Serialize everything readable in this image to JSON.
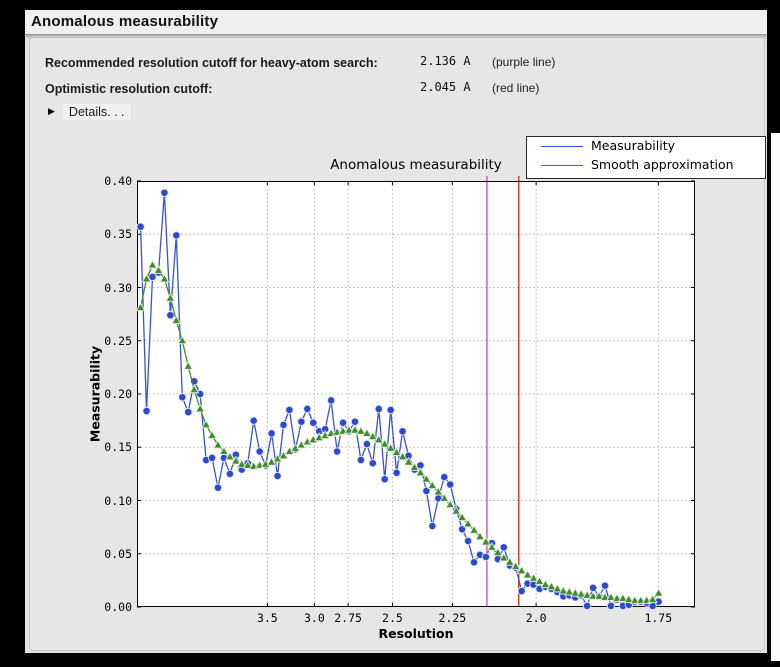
{
  "window": {
    "title": "Anomalous measurability"
  },
  "summary": {
    "rows": [
      {
        "label": "Recommended resolution cutoff for heavy-atom search:",
        "value": "2.136 A",
        "note": "(purple line)"
      },
      {
        "label": "Optimistic resolution cutoff:",
        "value": "2.045 A",
        "note": "(red line)"
      }
    ],
    "details_label": "Details. . .",
    "details_icon": "▶"
  },
  "chart_data": {
    "type": "line",
    "title": "Anomalous measurability",
    "xlabel": "Resolution",
    "ylabel": "Measurability",
    "ylim": [
      0.0,
      0.4
    ],
    "ytick_labels": [
      "0.00",
      "0.05",
      "0.10",
      "0.15",
      "0.20",
      "0.25",
      "0.30",
      "0.35",
      "0.40"
    ],
    "xticks": [
      {
        "label": "3.5",
        "d": 3.5
      },
      {
        "label": "3.0",
        "d": 3.0
      },
      {
        "label": "2.75",
        "d": 2.75
      },
      {
        "label": "2.5",
        "d": 2.5
      },
      {
        "label": "2.25",
        "d": 2.25
      },
      {
        "label": "2.0",
        "d": 2.0
      },
      {
        "label": "1.75",
        "d": 1.75
      }
    ],
    "x_mapping": {
      "note": "x position proportional to 1/d^2 (d = resolution in Angstrom)",
      "s_min": 0.0,
      "s_max": 0.3495
    },
    "grid": true,
    "plot_bg": "#ffffff",
    "grid_color": "#b5b5b5",
    "legend_position": "top-right, above axes",
    "series": [
      {
        "name": "Measurability",
        "color": "#2d49d0",
        "line_color": "#3a50d8",
        "halo": "#dfe5f4",
        "marker": "circle",
        "s_start": 0.00225,
        "s_step": 0.0037293,
        "values": [
          0.357,
          0.184,
          0.31,
          0.314,
          0.389,
          0.274,
          0.349,
          0.197,
          0.183,
          0.212,
          0.2,
          0.138,
          0.14,
          0.112,
          0.14,
          0.125,
          0.143,
          0.129,
          0.135,
          0.175,
          0.146,
          0.133,
          0.163,
          0.123,
          0.171,
          0.185,
          0.148,
          0.174,
          0.186,
          0.173,
          0.165,
          0.167,
          0.194,
          0.146,
          0.173,
          0.165,
          0.174,
          0.138,
          0.153,
          0.135,
          0.186,
          0.12,
          0.185,
          0.126,
          0.165,
          0.142,
          0.129,
          0.133,
          0.109,
          0.076,
          0.102,
          0.122,
          0.115,
          0.092,
          0.073,
          0.062,
          0.042,
          0.049,
          0.047,
          0.06,
          0.045,
          0.056,
          0.039,
          0.037,
          0.015,
          0.022,
          0.021,
          0.017,
          0.019,
          0.017,
          0.014,
          0.01,
          0.011,
          0.009,
          0.011,
          0.001,
          0.018,
          0.01,
          0.02,
          0.001,
          0.007,
          0.001,
          0.002,
          0.005,
          0.005,
          0.004,
          0.001,
          0.005
        ]
      },
      {
        "name": "Smooth approximation",
        "color": "#3f8b2e",
        "line_color": "#3f8b2e",
        "halo": "#e3eedd",
        "marker": "triangle-up",
        "s_start": 0.00225,
        "s_step": 0.0037293,
        "values": [
          0.281,
          0.308,
          0.321,
          0.316,
          0.308,
          0.29,
          0.269,
          0.25,
          0.226,
          0.204,
          0.186,
          0.171,
          0.161,
          0.152,
          0.146,
          0.141,
          0.137,
          0.134,
          0.133,
          0.132,
          0.133,
          0.134,
          0.136,
          0.139,
          0.142,
          0.146,
          0.149,
          0.152,
          0.155,
          0.157,
          0.159,
          0.161,
          0.163,
          0.164,
          0.165,
          0.166,
          0.166,
          0.165,
          0.163,
          0.16,
          0.157,
          0.153,
          0.149,
          0.145,
          0.141,
          0.136,
          0.131,
          0.126,
          0.12,
          0.114,
          0.108,
          0.102,
          0.096,
          0.09,
          0.084,
          0.078,
          0.072,
          0.066,
          0.061,
          0.056,
          0.051,
          0.046,
          0.042,
          0.038,
          0.034,
          0.03,
          0.027,
          0.024,
          0.021,
          0.019,
          0.017,
          0.015,
          0.014,
          0.013,
          0.012,
          0.011,
          0.01,
          0.01,
          0.009,
          0.009,
          0.008,
          0.008,
          0.007,
          0.006,
          0.006,
          0.006,
          0.007,
          0.013
        ]
      }
    ],
    "vlines": [
      {
        "name": "recommended-cutoff",
        "color": "#c653c6",
        "resolution_A": 2.136,
        "legend": "purple line"
      },
      {
        "name": "optimistic-cutoff",
        "color": "#cf3a10",
        "resolution_A": 2.045,
        "legend": "red line"
      }
    ]
  }
}
